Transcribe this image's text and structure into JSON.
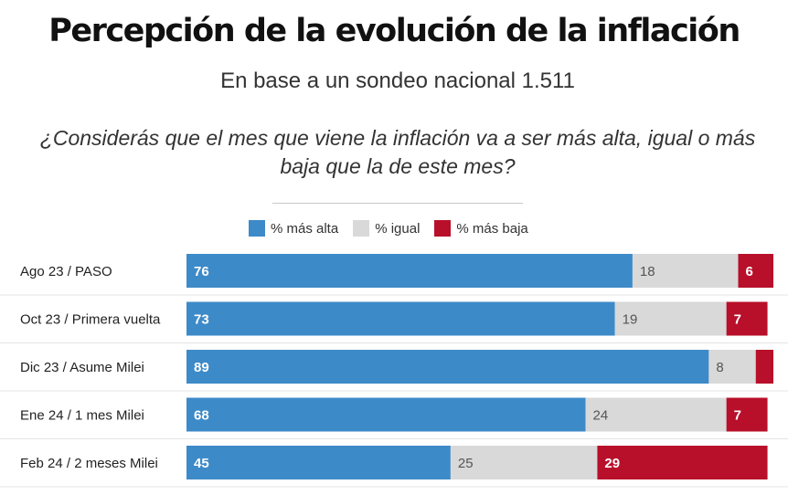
{
  "header": {
    "title": "Percepción de la evolución de la inflación",
    "subtitle": "En base a un sondeo nacional 1.511",
    "question": "¿Considerás que el mes que viene la inflación va a ser más alta, igual o más baja que la de este mes?"
  },
  "colors": {
    "mas_alta": "#3d8ac8",
    "igual": "#d9d9d9",
    "mas_baja": "#b8102a",
    "label_on_dark": "#ffffff",
    "label_on_light": "#555555"
  },
  "chart_data": {
    "type": "bar",
    "orientation": "horizontal",
    "stacked": true,
    "categories": [
      "Ago 23 / PASO",
      "Oct 23 / Primera vuelta",
      "Dic 23 / Asume Milei",
      "Ene 24 / 1 mes Milei",
      "Feb 24 / 2 meses Milei"
    ],
    "series": [
      {
        "name": "% más alta",
        "values": [
          76,
          73,
          89,
          68,
          45
        ],
        "labels": [
          "76",
          "73",
          "89",
          "68",
          "45"
        ]
      },
      {
        "name": "% igual",
        "values": [
          18,
          19,
          8,
          24,
          25
        ],
        "labels": [
          "18",
          "19",
          "8",
          "24",
          "25"
        ]
      },
      {
        "name": "% más baja",
        "values": [
          6,
          7,
          3,
          7,
          29
        ],
        "labels": [
          "6",
          "7",
          "",
          "7",
          "29"
        ]
      }
    ],
    "xlim": [
      0,
      100
    ],
    "legend_position": "top-center",
    "grid": false
  }
}
